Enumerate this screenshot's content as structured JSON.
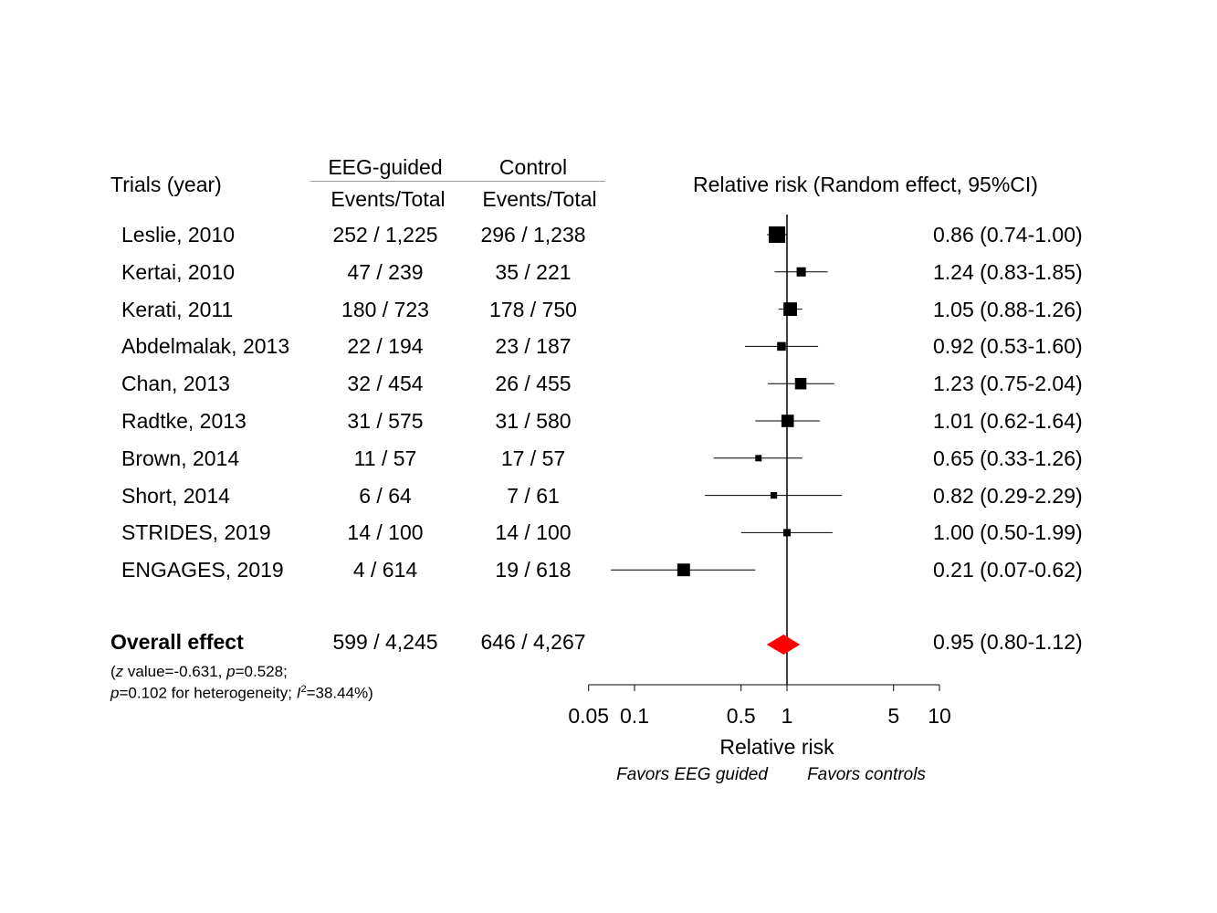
{
  "header": {
    "trials_label": "Trials (year)",
    "group1": "EEG-guided",
    "group2": "Control",
    "sub1": "Events/Total",
    "sub2": "Events/Total",
    "rr_label": "Relative risk (Random effect, 95%CI)"
  },
  "overall": {
    "label": "Overall effect",
    "eeg": "599 / 4,245",
    "control": "646 / 4,267",
    "rr_text": "0.95 (0.80-1.12)",
    "note_line1": "(z value=-0.631, p=0.528;",
    "note_line2": "p=0.102 for heterogeneity; I2=38.44%)"
  },
  "footer": {
    "xlabel": "Relative risk",
    "favors_left": "Favors EEG guided",
    "favors_right": "Favors controls"
  },
  "colors": {
    "diamond": "#ff0000",
    "marker": "#000000"
  },
  "chart_data": {
    "type": "forest",
    "x_scale": "log",
    "xlim": [
      0.05,
      10
    ],
    "x_ticks": [
      0.05,
      0.1,
      0.5,
      1,
      5,
      10
    ],
    "x_tick_labels": [
      "0.05",
      "0.1",
      "0.5",
      "1",
      "5",
      "10"
    ],
    "reference_line": 1,
    "studies": [
      {
        "label": "Leslie, 2010",
        "eeg": "252 / 1,225",
        "control": "296 / 1,238",
        "rr": 0.86,
        "lo": 0.74,
        "hi": 1.0,
        "rr_text": "0.86 (0.74-1.00)"
      },
      {
        "label": "Kertai, 2010",
        "eeg": "47 / 239",
        "control": "35 / 221",
        "rr": 1.24,
        "lo": 0.83,
        "hi": 1.85,
        "rr_text": "1.24 (0.83-1.85)"
      },
      {
        "label": "Kerati, 2011",
        "eeg": "180 / 723",
        "control": "178 / 750",
        "rr": 1.05,
        "lo": 0.88,
        "hi": 1.26,
        "rr_text": "1.05 (0.88-1.26)"
      },
      {
        "label": "Abdelmalak, 2013",
        "eeg": "22 / 194",
        "control": "23 / 187",
        "rr": 0.92,
        "lo": 0.53,
        "hi": 1.6,
        "rr_text": "0.92 (0.53-1.60)"
      },
      {
        "label": "Chan, 2013",
        "eeg": "32 / 454",
        "control": "26 / 455",
        "rr": 1.23,
        "lo": 0.75,
        "hi": 2.04,
        "rr_text": "1.23 (0.75-2.04)"
      },
      {
        "label": "Radtke, 2013",
        "eeg": "31 / 575",
        "control": "31 / 580",
        "rr": 1.01,
        "lo": 0.62,
        "hi": 1.64,
        "rr_text": "1.01 (0.62-1.64)"
      },
      {
        "label": "Brown, 2014",
        "eeg": "11 / 57",
        "control": "17 / 57",
        "rr": 0.65,
        "lo": 0.33,
        "hi": 1.26,
        "rr_text": "0.65 (0.33-1.26)"
      },
      {
        "label": "Short, 2014",
        "eeg": "6 / 64",
        "control": "7 / 61",
        "rr": 0.82,
        "lo": 0.29,
        "hi": 2.29,
        "rr_text": "0.82 (0.29-2.29)"
      },
      {
        "label": "STRIDES, 2019",
        "eeg": "14 / 100",
        "control": "14 / 100",
        "rr": 1.0,
        "lo": 0.5,
        "hi": 1.99,
        "rr_text": "1.00 (0.50-1.99)"
      },
      {
        "label": "ENGAGES, 2019",
        "eeg": "4 / 614",
        "control": "19 / 618",
        "rr": 0.21,
        "lo": 0.07,
        "hi": 0.62,
        "rr_text": "0.21 (0.07-0.62)"
      }
    ],
    "overall": {
      "rr": 0.95,
      "lo": 0.8,
      "hi": 1.12
    }
  }
}
